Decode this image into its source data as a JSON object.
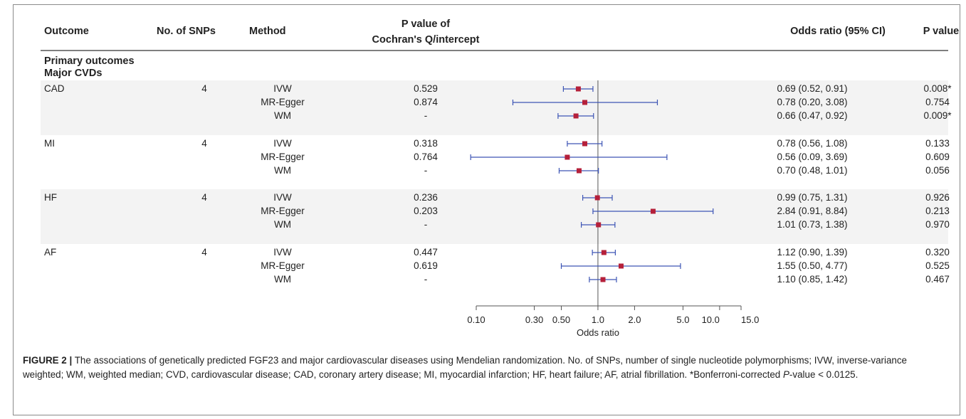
{
  "headers": {
    "outcome": "Outcome",
    "snps": "No. of SNPs",
    "method": "Method",
    "pval_q_line1": "P value of",
    "pval_q_line2": "Cochran's Q/intercept",
    "or": "Odds ratio (95% CI)",
    "pval": "P value"
  },
  "sections": {
    "primary": "Primary outcomes",
    "major": "Major CVDs"
  },
  "chart_data": {
    "type": "forest",
    "x_scale": "log",
    "xlabel": "Odds ratio",
    "reference_line": 1.0,
    "xlim": [
      0.1,
      15.0
    ],
    "ticks": [
      0.1,
      0.3,
      0.5,
      1.0,
      2.0,
      5.0,
      10.0,
      15.0
    ],
    "tick_labels": [
      "0.10",
      "0.30",
      "0.50",
      "1.0",
      "2.0",
      "5.0",
      "10.0",
      "15.0"
    ],
    "colors": {
      "point": "#b5203a",
      "ci": "#3d55b5",
      "band": "#f3f3f3",
      "axis": "#555555"
    },
    "groups": [
      {
        "outcome": "CAD",
        "snps": "4",
        "shaded": true,
        "rows": [
          {
            "method": "IVW",
            "q": "0.529",
            "or": 0.69,
            "lo": 0.52,
            "hi": 0.91,
            "or_text": "0.69 (0.52, 0.91)",
            "p": "0.008*"
          },
          {
            "method": "MR-Egger",
            "q": "0.874",
            "or": 0.78,
            "lo": 0.2,
            "hi": 3.08,
            "or_text": "0.78 (0.20, 3.08)",
            "p": "0.754"
          },
          {
            "method": "WM",
            "q": "-",
            "or": 0.66,
            "lo": 0.47,
            "hi": 0.92,
            "or_text": "0.66 (0.47, 0.92)",
            "p": "0.009*"
          }
        ]
      },
      {
        "outcome": "MI",
        "snps": "4",
        "shaded": false,
        "rows": [
          {
            "method": "IVW",
            "q": "0.318",
            "or": 0.78,
            "lo": 0.56,
            "hi": 1.08,
            "or_text": "0.78 (0.56, 1.08)",
            "p": "0.133"
          },
          {
            "method": "MR-Egger",
            "q": "0.764",
            "or": 0.56,
            "lo": 0.09,
            "hi": 3.69,
            "or_text": "0.56 (0.09, 3.69)",
            "p": "0.609"
          },
          {
            "method": "WM",
            "q": "-",
            "or": 0.7,
            "lo": 0.48,
            "hi": 1.01,
            "or_text": "0.70 (0.48, 1.01)",
            "p": "0.056"
          }
        ]
      },
      {
        "outcome": "HF",
        "snps": "4",
        "shaded": true,
        "rows": [
          {
            "method": "IVW",
            "q": "0.236",
            "or": 0.99,
            "lo": 0.75,
            "hi": 1.31,
            "or_text": "0.99 (0.75, 1.31)",
            "p": "0.926"
          },
          {
            "method": "MR-Egger",
            "q": "0.203",
            "or": 2.84,
            "lo": 0.91,
            "hi": 8.84,
            "or_text": "2.84 (0.91, 8.84)",
            "p": "0.213"
          },
          {
            "method": "WM",
            "q": "-",
            "or": 1.01,
            "lo": 0.73,
            "hi": 1.38,
            "or_text": "1.01 (0.73, 1.38)",
            "p": "0.970"
          }
        ]
      },
      {
        "outcome": "AF",
        "snps": "4",
        "shaded": false,
        "rows": [
          {
            "method": "IVW",
            "q": "0.447",
            "or": 1.12,
            "lo": 0.9,
            "hi": 1.39,
            "or_text": "1.12 (0.90, 1.39)",
            "p": "0.320"
          },
          {
            "method": "MR-Egger",
            "q": "0.619",
            "or": 1.55,
            "lo": 0.5,
            "hi": 4.77,
            "or_text": "1.55 (0.50, 4.77)",
            "p": "0.525"
          },
          {
            "method": "WM",
            "q": "-",
            "or": 1.1,
            "lo": 0.85,
            "hi": 1.42,
            "or_text": "1.10 (0.85, 1.42)",
            "p": "0.467"
          }
        ]
      }
    ]
  },
  "caption": {
    "label": "FIGURE 2 |",
    "text": " The associations of genetically predicted FGF23 and major cardiovascular diseases using Mendelian randomization. No. of SNPs, number of single nucleotide polymorphisms; IVW, inverse-variance weighted; WM, weighted median; CVD, cardiovascular disease; CAD, coronary artery disease; MI, myocardial infarction; HF, heart failure; AF, atrial fibrillation. *Bonferroni-corrected ",
    "italic_p": "P",
    "tail": "-value < 0.0125."
  }
}
